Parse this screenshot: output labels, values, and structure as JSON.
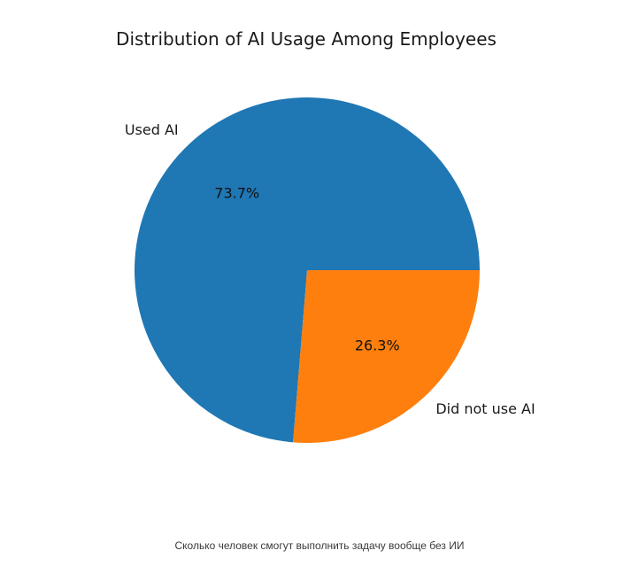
{
  "chart_data": {
    "type": "pie",
    "title": "Distribution of AI Usage Among Employees",
    "categories": [
      "Used AI",
      "Did not use AI"
    ],
    "values": [
      73.7,
      26.3
    ],
    "value_labels": [
      "73.7%",
      "26.3%"
    ],
    "colors": [
      "#1f77b4",
      "#ff7f0e"
    ],
    "start_angle_deg": 0,
    "direction": "counterclockwise",
    "legend": "none"
  },
  "caption": "Сколько человек смогут выполнить задачу вообще без ИИ"
}
